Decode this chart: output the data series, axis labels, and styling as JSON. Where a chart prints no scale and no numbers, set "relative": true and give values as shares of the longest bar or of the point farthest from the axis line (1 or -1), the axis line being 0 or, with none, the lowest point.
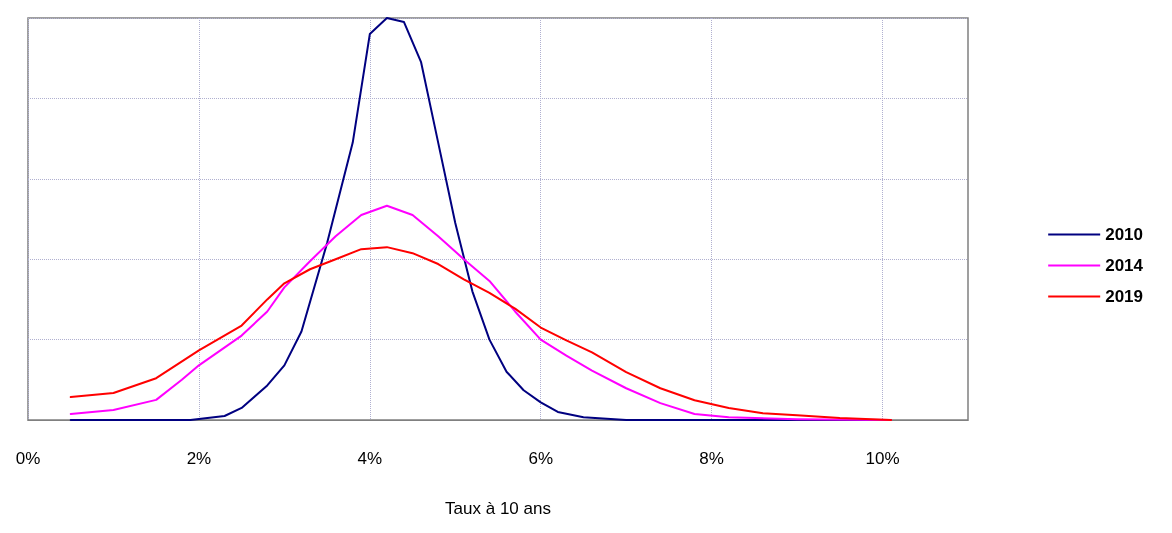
{
  "chart_data": {
    "type": "line",
    "xlabel": "Taux à 10 ans",
    "relative": true,
    "xlim": [
      0,
      11
    ],
    "xticks": [
      {
        "value": 0,
        "label": "0%"
      },
      {
        "value": 2,
        "label": "2%"
      },
      {
        "value": 4,
        "label": "4%"
      },
      {
        "value": 6,
        "label": "6%"
      },
      {
        "value": 8,
        "label": "8%"
      },
      {
        "value": 10,
        "label": "10%"
      }
    ],
    "grid": true,
    "legend": "right",
    "marker": "none",
    "line_style": "solid",
    "series": [
      {
        "name": "2010",
        "color": "#000080",
        "x": [
          0.5,
          1.5,
          1.9,
          2.3,
          2.5,
          2.8,
          3.0,
          3.2,
          3.5,
          3.8,
          4.0,
          4.2,
          4.4,
          4.6,
          4.8,
          5.0,
          5.2,
          5.4,
          5.6,
          5.8,
          6.0,
          6.2,
          6.5,
          7.0,
          8.0,
          9.0,
          10.1
        ],
        "values": [
          0,
          0,
          0,
          0.01,
          0.03,
          0.086,
          0.136,
          0.22,
          0.44,
          0.69,
          0.96,
          1,
          0.99,
          0.89,
          0.69,
          0.49,
          0.32,
          0.2,
          0.12,
          0.074,
          0.044,
          0.02,
          0.007,
          0,
          0,
          0,
          0
        ]
      },
      {
        "name": "2014",
        "color": "#ff00ff",
        "x": [
          0.5,
          1.0,
          1.5,
          1.8,
          2.0,
          2.5,
          2.8,
          3.0,
          3.3,
          3.6,
          3.9,
          4.2,
          4.5,
          4.8,
          5.1,
          5.4,
          5.7,
          6.0,
          6.3,
          6.6,
          7.0,
          7.4,
          7.8,
          8.2,
          9.0,
          10.1
        ],
        "values": [
          0.015,
          0.025,
          0.05,
          0.1,
          0.136,
          0.21,
          0.27,
          0.33,
          0.395,
          0.457,
          0.51,
          0.533,
          0.51,
          0.457,
          0.4,
          0.346,
          0.27,
          0.2,
          0.16,
          0.123,
          0.079,
          0.042,
          0.015,
          0.007,
          0.002,
          0
        ]
      },
      {
        "name": "2019",
        "color": "#ff0000",
        "x": [
          0.5,
          1.0,
          1.5,
          2.0,
          2.5,
          2.8,
          3.0,
          3.3,
          3.6,
          3.9,
          4.2,
          4.5,
          4.8,
          5.1,
          5.4,
          5.7,
          6.0,
          6.3,
          6.6,
          7.0,
          7.4,
          7.8,
          8.2,
          8.6,
          9.0,
          9.5,
          10.1
        ],
        "values": [
          0.057,
          0.067,
          0.104,
          0.173,
          0.235,
          0.3,
          0.34,
          0.375,
          0.4,
          0.425,
          0.43,
          0.415,
          0.388,
          0.35,
          0.316,
          0.277,
          0.23,
          0.198,
          0.168,
          0.119,
          0.079,
          0.049,
          0.03,
          0.017,
          0.012,
          0.005,
          0
        ]
      }
    ]
  }
}
